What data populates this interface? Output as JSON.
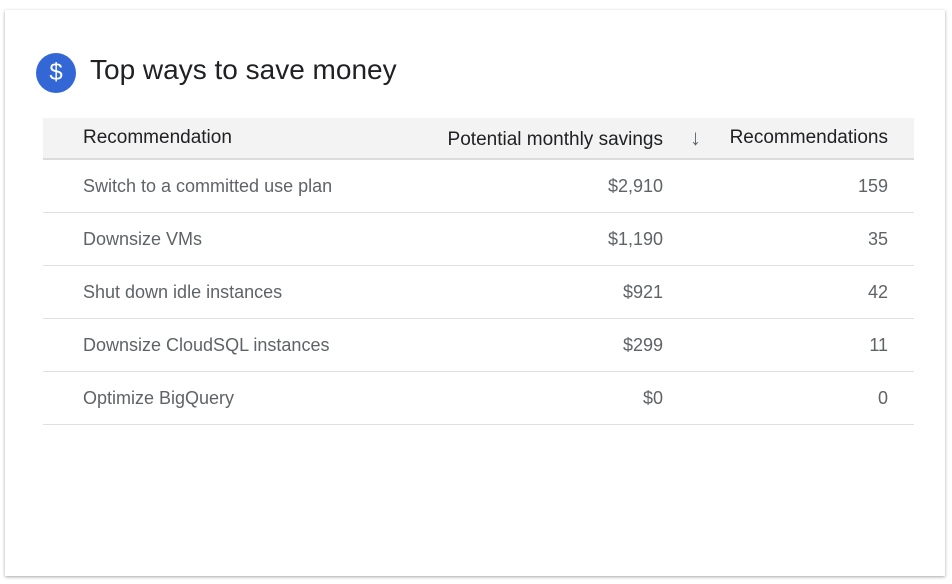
{
  "card": {
    "title": "Top ways to save money",
    "icon": "dollar-icon",
    "icon_glyph": "$",
    "accent": "#3367d6"
  },
  "table": {
    "columns": [
      "Recommendation",
      "Potential monthly savings",
      "Recommendations"
    ],
    "sort_icon": "arrow-down-icon",
    "rows": [
      [
        "Switch to a committed use plan",
        "$2,910",
        "159"
      ],
      [
        "Downsize VMs",
        "$1,190",
        "35"
      ],
      [
        "Shut down idle instances",
        "$921",
        "42"
      ],
      [
        "Downsize CloudSQL instances",
        "$299",
        "11"
      ],
      [
        "Optimize BigQuery",
        "$0",
        "0"
      ]
    ]
  }
}
